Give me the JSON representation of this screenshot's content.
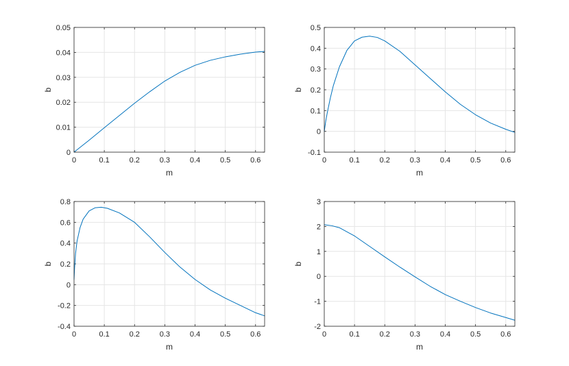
{
  "chart_data": [
    {
      "type": "line",
      "xlabel": "m",
      "ylabel": "b",
      "xlim": [
        0,
        0.63
      ],
      "ylim": [
        0,
        0.05
      ],
      "xticks": [
        "0",
        "0.1",
        "0.2",
        "0.3",
        "0.4",
        "0.5",
        "0.6"
      ],
      "yticks": [
        "0",
        "0.01",
        "0.02",
        "0.03",
        "0.04",
        "0.05"
      ],
      "grid": true,
      "series": [
        {
          "color": "#0072bd",
          "x": [
            0,
            0.05,
            0.1,
            0.15,
            0.2,
            0.25,
            0.3,
            0.35,
            0.4,
            0.45,
            0.5,
            0.55,
            0.6,
            0.63
          ],
          "y": [
            0,
            0.0048,
            0.0098,
            0.0147,
            0.0196,
            0.0242,
            0.0285,
            0.032,
            0.0348,
            0.0368,
            0.0382,
            0.0393,
            0.0401,
            0.0404
          ]
        }
      ]
    },
    {
      "type": "line",
      "xlabel": "m",
      "ylabel": "b",
      "xlim": [
        0,
        0.63
      ],
      "ylim": [
        -0.1,
        0.5
      ],
      "xticks": [
        "0",
        "0.1",
        "0.2",
        "0.3",
        "0.4",
        "0.5",
        "0.6"
      ],
      "yticks": [
        "-0.1",
        "0",
        "0.1",
        "0.2",
        "0.3",
        "0.4",
        "0.5"
      ],
      "grid": true,
      "series": [
        {
          "color": "#0072bd",
          "x": [
            0,
            0.005,
            0.01,
            0.02,
            0.03,
            0.05,
            0.075,
            0.1,
            0.125,
            0.15,
            0.175,
            0.2,
            0.25,
            0.3,
            0.35,
            0.4,
            0.45,
            0.5,
            0.55,
            0.6,
            0.63
          ],
          "y": [
            0.0,
            0.05,
            0.09,
            0.16,
            0.22,
            0.31,
            0.39,
            0.435,
            0.453,
            0.458,
            0.452,
            0.435,
            0.385,
            0.32,
            0.255,
            0.19,
            0.13,
            0.08,
            0.04,
            0.01,
            -0.005
          ]
        }
      ]
    },
    {
      "type": "line",
      "xlabel": "m",
      "ylabel": "b",
      "xlim": [
        0,
        0.63
      ],
      "ylim": [
        -0.4,
        0.8
      ],
      "xticks": [
        "0",
        "0.1",
        "0.2",
        "0.3",
        "0.4",
        "0.5",
        "0.6"
      ],
      "yticks": [
        "-0.4",
        "-0.2",
        "0",
        "0.2",
        "0.4",
        "0.6",
        "0.8"
      ],
      "grid": true,
      "series": [
        {
          "color": "#0072bd",
          "x": [
            0,
            0.002,
            0.005,
            0.01,
            0.02,
            0.03,
            0.05,
            0.07,
            0.09,
            0.11,
            0.15,
            0.2,
            0.25,
            0.3,
            0.35,
            0.4,
            0.45,
            0.5,
            0.55,
            0.6,
            0.63
          ],
          "y": [
            0.05,
            0.17,
            0.3,
            0.42,
            0.55,
            0.63,
            0.71,
            0.74,
            0.745,
            0.735,
            0.69,
            0.6,
            0.46,
            0.31,
            0.17,
            0.05,
            -0.05,
            -0.13,
            -0.2,
            -0.27,
            -0.3
          ]
        }
      ]
    },
    {
      "type": "line",
      "xlabel": "m",
      "ylabel": "b",
      "xlim": [
        0,
        0.63
      ],
      "ylim": [
        -2,
        3
      ],
      "xticks": [
        "0",
        "0.1",
        "0.2",
        "0.3",
        "0.4",
        "0.5",
        "0.6"
      ],
      "yticks": [
        "-2",
        "-1",
        "0",
        "1",
        "2",
        "3"
      ],
      "grid": true,
      "series": [
        {
          "color": "#0072bd",
          "x": [
            0,
            0.025,
            0.05,
            0.1,
            0.15,
            0.2,
            0.25,
            0.3,
            0.35,
            0.4,
            0.45,
            0.5,
            0.55,
            0.6,
            0.63
          ],
          "y": [
            2.07,
            2.03,
            1.95,
            1.62,
            1.2,
            0.78,
            0.37,
            -0.02,
            -0.4,
            -0.73,
            -1.0,
            -1.25,
            -1.47,
            -1.65,
            -1.76
          ]
        }
      ]
    }
  ]
}
